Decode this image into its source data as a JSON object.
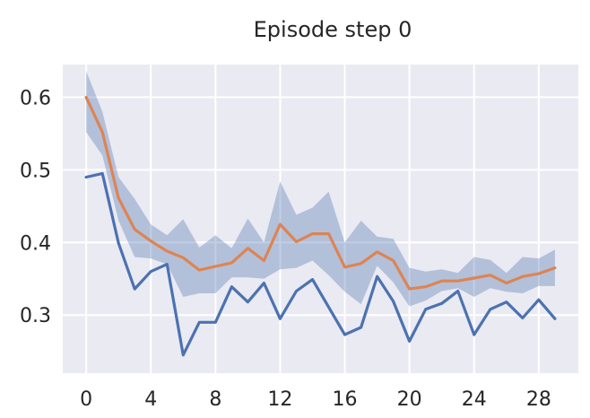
{
  "chart_data": {
    "type": "line",
    "title": "Episode step 0",
    "xlabel": "",
    "ylabel": "",
    "xlim": [
      -1.45,
      30.45
    ],
    "ylim": [
      0.22,
      0.645
    ],
    "xticks": [
      0,
      4,
      8,
      12,
      16,
      20,
      24,
      28
    ],
    "yticks": [
      0.3,
      0.4,
      0.5,
      0.6
    ],
    "ytick_labels": [
      "0.3",
      "0.4",
      "0.5",
      "0.6"
    ],
    "grid": true,
    "background": "#eaeaf2",
    "x": [
      0,
      1,
      2,
      3,
      4,
      5,
      6,
      7,
      8,
      9,
      10,
      11,
      12,
      13,
      14,
      15,
      16,
      17,
      18,
      19,
      20,
      21,
      22,
      23,
      24,
      25,
      26,
      27,
      28,
      29
    ],
    "series": [
      {
        "color": "#4c72b0",
        "values": [
          0.49,
          0.495,
          0.399,
          0.336,
          0.36,
          0.37,
          0.245,
          0.29,
          0.29,
          0.339,
          0.318,
          0.344,
          0.295,
          0.333,
          0.349,
          0.311,
          0.273,
          0.283,
          0.353,
          0.319,
          0.264,
          0.308,
          0.316,
          0.333,
          0.273,
          0.308,
          0.318,
          0.296,
          0.321,
          0.295
        ]
      },
      {
        "color": "#dd8452",
        "values": [
          0.6,
          0.552,
          0.461,
          0.418,
          0.402,
          0.388,
          0.379,
          0.362,
          0.367,
          0.372,
          0.392,
          0.375,
          0.425,
          0.401,
          0.412,
          0.412,
          0.366,
          0.371,
          0.387,
          0.375,
          0.336,
          0.339,
          0.347,
          0.347,
          0.351,
          0.355,
          0.344,
          0.353,
          0.357,
          0.365
        ],
        "band": {
          "color": "#4c72b0",
          "opacity": 0.35,
          "upper": [
            0.636,
            0.58,
            0.49,
            0.46,
            0.425,
            0.41,
            0.432,
            0.393,
            0.41,
            0.392,
            0.433,
            0.4,
            0.484,
            0.438,
            0.448,
            0.47,
            0.4,
            0.43,
            0.408,
            0.405,
            0.365,
            0.36,
            0.363,
            0.358,
            0.38,
            0.376,
            0.358,
            0.38,
            0.378,
            0.39
          ],
          "lower": [
            0.552,
            0.52,
            0.43,
            0.38,
            0.378,
            0.37,
            0.325,
            0.33,
            0.33,
            0.352,
            0.352,
            0.35,
            0.363,
            0.365,
            0.375,
            0.355,
            0.332,
            0.315,
            0.368,
            0.345,
            0.312,
            0.32,
            0.333,
            0.337,
            0.325,
            0.337,
            0.332,
            0.33,
            0.34,
            0.34
          ]
        }
      }
    ]
  }
}
